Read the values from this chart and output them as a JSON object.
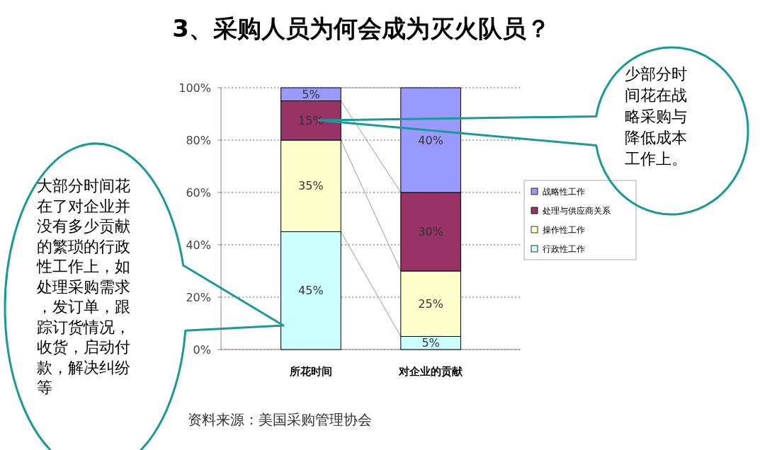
{
  "chart_data": {
    "type": "bar",
    "stacked": true,
    "title": "3、采购人员为何会成为灭火队员？",
    "categories": [
      "所花时间",
      "对企业的贡献"
    ],
    "series": [
      {
        "name": "行政性工作",
        "color": "#ccffff",
        "values": [
          45,
          5
        ],
        "value_labels": [
          "45%",
          "5%"
        ]
      },
      {
        "name": "操作性工作",
        "color": "#ffffcc",
        "values": [
          35,
          25
        ],
        "value_labels": [
          "35%",
          "25%"
        ]
      },
      {
        "name": "处理与供应商关系",
        "color": "#993366",
        "values": [
          15,
          30
        ],
        "value_labels": [
          "15%",
          "30%"
        ]
      },
      {
        "name": "战略性工作",
        "color": "#9999ff",
        "values": [
          5,
          40
        ],
        "value_labels": [
          "5%",
          "40%"
        ]
      }
    ],
    "ylim": [
      0,
      100
    ],
    "yticks": [
      {
        "value": 0,
        "label": "0%"
      },
      {
        "value": 20,
        "label": "20%"
      },
      {
        "value": 40,
        "label": "40%"
      },
      {
        "value": 60,
        "label": "60%"
      },
      {
        "value": 80,
        "label": "80%"
      },
      {
        "value": 100,
        "label": "100%"
      }
    ],
    "grid": "y",
    "legend": "right",
    "annotations": [
      "大部分时间花在了对企业并没有多少贡献的繁琐的行政性工作上，如处理采购需求，发订单，跟踪订货情况，收货，启动付款，解决纠纷等",
      "少部分时间花在战略采购与降低成本工作上。",
      "资料来源：美国采购管理协会"
    ]
  }
}
